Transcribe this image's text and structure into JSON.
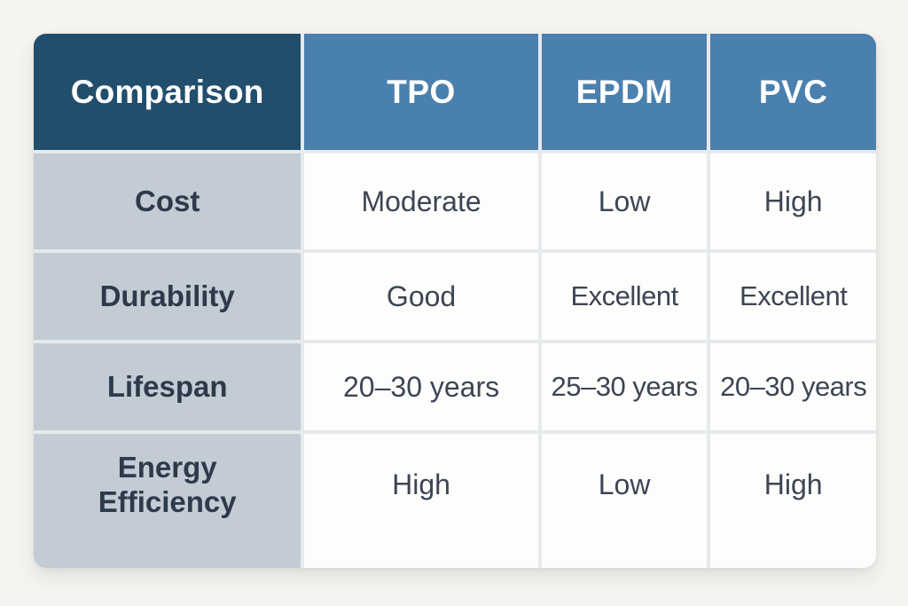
{
  "chart_data": {
    "type": "table",
    "title": "Comparison",
    "columns": [
      "Comparison",
      "TPO",
      "EPDM",
      "PVC"
    ],
    "rows": [
      [
        "Cost",
        "Moderate",
        "Low",
        "High"
      ],
      [
        "Durability",
        "Good",
        "Excellent",
        "Excellent"
      ],
      [
        "Lifespan",
        "20–30 years",
        "25–30 years",
        "20–30 years"
      ],
      [
        "Energy Efficiency",
        "High",
        "Low",
        "High"
      ]
    ],
    "layout_hints": {
      "header_row": true,
      "label_column": true,
      "grid": "separated cells with light gaps",
      "corner_radius": true
    }
  },
  "colors": {
    "page_background": "#f5f4f1",
    "header_corner_background": "#214e6c",
    "header_background": "#4a80ae",
    "row_label_background": "#c3cbd4",
    "value_cell_background": "#fdfdfc",
    "divider": "#e7eaec",
    "header_text": "#ffffff",
    "row_label_text": "#2d3a4a",
    "value_text": "#3d4554"
  }
}
